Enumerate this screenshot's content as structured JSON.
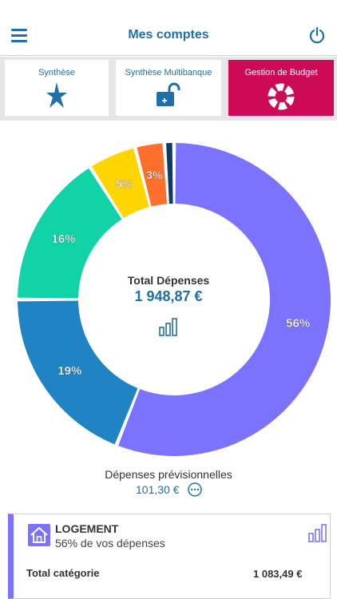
{
  "header": {
    "title": "Mes comptes"
  },
  "tabs": [
    {
      "label": "Synthèse",
      "icon": "star-icon",
      "active": false
    },
    {
      "label": "Synthèse Multibanque",
      "icon": "lock-icon",
      "active": false
    },
    {
      "label": "Gestion de Budget",
      "icon": "donut-icon",
      "active": true
    }
  ],
  "chart_data": {
    "type": "pie",
    "donut": true,
    "slices": [
      {
        "value": 56,
        "label": "56%",
        "color": "#7b73ff"
      },
      {
        "value": 19,
        "label": "19%",
        "color": "#1f83c4"
      },
      {
        "value": 16,
        "label": "16%",
        "color": "#12d2a8"
      },
      {
        "value": 5,
        "label": "5%",
        "color": "#ffd500"
      },
      {
        "value": 3,
        "label": "3%",
        "color": "#ff6f2c"
      },
      {
        "value": 1,
        "label": "",
        "color": "#0c3c63"
      }
    ]
  },
  "center": {
    "title": "Total Dépenses",
    "value": "1 948,87 €"
  },
  "forecast": {
    "label": "Dépenses prévisionnelles",
    "value": "101,30 €"
  },
  "category": {
    "title": "LOGEMENT",
    "subtitle": "56% de vos dépenses",
    "total_label": "Total catégorie",
    "total_value": "1 083,49 €",
    "color": "#7b73ff"
  }
}
